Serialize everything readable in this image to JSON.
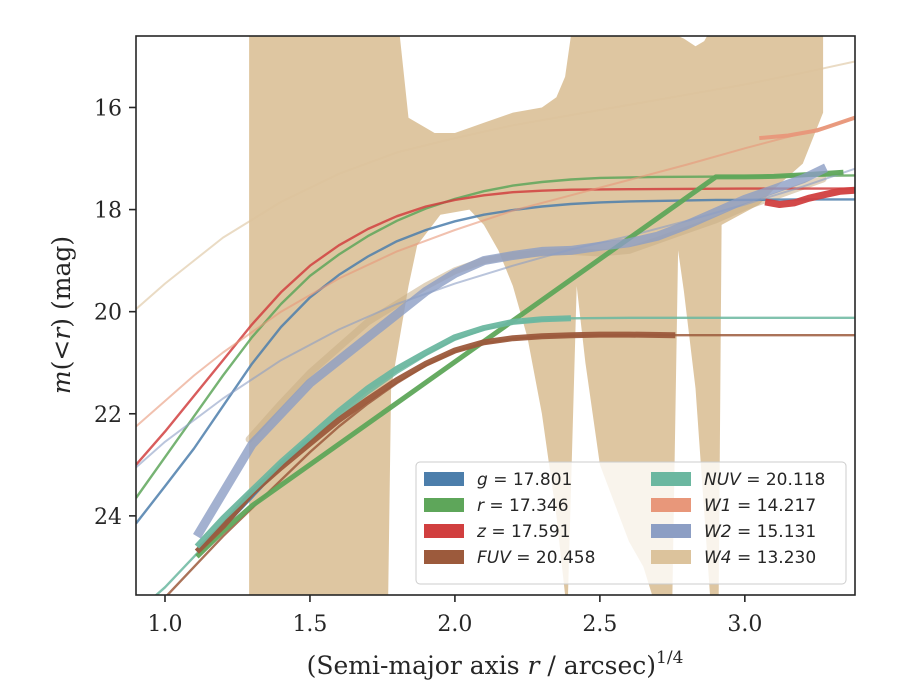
{
  "chart_data": {
    "type": "line",
    "title": "",
    "xlabel": "(Semi-major axis r / arcsec)",
    "xlabel_parts": {
      "pre": "(Semi-major axis ",
      "var": "r",
      "post": " / arcsec)",
      "sup": "1/4"
    },
    "ylabel": "m(< r) (mag)",
    "ylabel_parts": {
      "m": "m",
      "lp": "(",
      "lt": "<",
      "r": "r",
      "rp": ")",
      "unit": " (mag)"
    },
    "xlim": [
      0.9,
      3.38
    ],
    "ylim": [
      25.55,
      14.6
    ],
    "y_inverted": true,
    "xticks": [
      1.0,
      1.5,
      2.0,
      2.5,
      3.0
    ],
    "xtick_labels": [
      "1.0",
      "1.5",
      "2.0",
      "2.5",
      "3.0"
    ],
    "yticks": [
      16,
      18,
      20,
      22,
      24
    ],
    "ytick_labels": [
      "16",
      "18",
      "20",
      "22",
      "24"
    ],
    "legend_placement": "lower-right",
    "series": [
      {
        "name": "g",
        "label_var": "g",
        "label_value": " = 17.801",
        "color": "#4c7eab",
        "fit": [
          [
            0.9,
            24.15
          ],
          [
            1.0,
            23.42
          ],
          [
            1.1,
            22.68
          ],
          [
            1.2,
            21.85
          ],
          [
            1.3,
            21.02
          ],
          [
            1.4,
            20.3
          ],
          [
            1.5,
            19.72
          ],
          [
            1.6,
            19.28
          ],
          [
            1.7,
            18.92
          ],
          [
            1.8,
            18.62
          ],
          [
            1.9,
            18.4
          ],
          [
            2.0,
            18.23
          ],
          [
            2.1,
            18.1
          ],
          [
            2.2,
            18.01
          ],
          [
            2.3,
            17.94
          ],
          [
            2.4,
            17.89
          ],
          [
            2.5,
            17.86
          ],
          [
            2.6,
            17.84
          ],
          [
            2.7,
            17.83
          ],
          [
            2.8,
            17.82
          ],
          [
            2.9,
            17.81
          ],
          [
            3.0,
            17.81
          ],
          [
            3.2,
            17.8
          ],
          [
            3.38,
            17.8
          ]
        ],
        "data": [
          [
            1.11,
            24.7
          ],
          [
            1.2,
            24.2
          ],
          [
            1.3,
            23.6
          ],
          [
            1.4,
            23.0
          ],
          [
            1.5,
            22.5
          ]
        ]
      },
      {
        "name": "r",
        "label_var": "r",
        "label_value": " = 17.346",
        "color": "#5ea65a",
        "fit": [
          [
            0.9,
            23.65
          ],
          [
            1.0,
            22.85
          ],
          [
            1.1,
            22.05
          ],
          [
            1.2,
            21.25
          ],
          [
            1.3,
            20.5
          ],
          [
            1.4,
            19.85
          ],
          [
            1.5,
            19.3
          ],
          [
            1.6,
            18.88
          ],
          [
            1.7,
            18.52
          ],
          [
            1.8,
            18.22
          ],
          [
            1.9,
            17.98
          ],
          [
            2.0,
            17.79
          ],
          [
            2.1,
            17.64
          ],
          [
            2.2,
            17.53
          ],
          [
            2.3,
            17.46
          ],
          [
            2.4,
            17.41
          ],
          [
            2.5,
            17.38
          ],
          [
            2.7,
            17.36
          ],
          [
            3.0,
            17.35
          ],
          [
            3.38,
            17.33
          ]
        ],
        "data": [
          [
            1.11,
            24.8
          ],
          [
            1.2,
            24.3
          ],
          [
            1.3,
            23.8
          ],
          [
            2.9,
            17.36
          ],
          [
            3.0,
            17.36
          ],
          [
            3.1,
            17.35
          ],
          [
            3.2,
            17.32
          ],
          [
            3.34,
            17.27
          ]
        ]
      },
      {
        "name": "z",
        "label_var": "z",
        "label_value": " = 17.591",
        "color": "#d13f3f",
        "fit": [
          [
            0.9,
            23.0
          ],
          [
            1.0,
            22.35
          ],
          [
            1.1,
            21.65
          ],
          [
            1.2,
            20.95
          ],
          [
            1.3,
            20.25
          ],
          [
            1.4,
            19.62
          ],
          [
            1.5,
            19.1
          ],
          [
            1.6,
            18.7
          ],
          [
            1.7,
            18.38
          ],
          [
            1.8,
            18.13
          ],
          [
            1.9,
            17.94
          ],
          [
            2.0,
            17.81
          ],
          [
            2.1,
            17.72
          ],
          [
            2.2,
            17.66
          ],
          [
            2.3,
            17.63
          ],
          [
            2.4,
            17.61
          ],
          [
            2.6,
            17.6
          ],
          [
            3.0,
            17.59
          ],
          [
            3.38,
            17.59
          ]
        ],
        "data": [
          [
            3.07,
            17.85
          ],
          [
            3.12,
            17.9
          ],
          [
            3.17,
            17.87
          ],
          [
            3.22,
            17.78
          ],
          [
            3.28,
            17.7
          ],
          [
            3.33,
            17.64
          ],
          [
            3.38,
            17.62
          ]
        ]
      },
      {
        "name": "FUV",
        "label_var": "FUV",
        "label_value": " = 20.458",
        "color": "#9c5a3c",
        "fit": [
          [
            0.9,
            26.2
          ],
          [
            1.0,
            25.6
          ],
          [
            1.1,
            25.0
          ],
          [
            1.2,
            24.4
          ],
          [
            1.3,
            23.85
          ],
          [
            1.4,
            23.3
          ],
          [
            1.5,
            22.75
          ],
          [
            1.6,
            22.25
          ],
          [
            1.7,
            21.8
          ],
          [
            1.8,
            21.4
          ],
          [
            1.9,
            21.05
          ],
          [
            2.0,
            20.78
          ],
          [
            2.1,
            20.62
          ],
          [
            2.2,
            20.53
          ],
          [
            2.3,
            20.49
          ],
          [
            2.4,
            20.47
          ],
          [
            2.6,
            20.46
          ],
          [
            3.0,
            20.46
          ],
          [
            3.38,
            20.46
          ]
        ],
        "data": [
          [
            1.11,
            24.7
          ],
          [
            1.2,
            24.2
          ],
          [
            1.3,
            23.55
          ],
          [
            1.4,
            23.05
          ],
          [
            1.5,
            22.58
          ],
          [
            1.6,
            22.12
          ],
          [
            1.7,
            21.72
          ],
          [
            1.8,
            21.34
          ],
          [
            1.9,
            21.02
          ],
          [
            2.0,
            20.76
          ],
          [
            2.1,
            20.6
          ],
          [
            2.2,
            20.52
          ],
          [
            2.3,
            20.48
          ],
          [
            2.4,
            20.46
          ],
          [
            2.5,
            20.45
          ],
          [
            2.6,
            20.45
          ],
          [
            2.76,
            20.46
          ]
        ]
      },
      {
        "name": "NUV",
        "label_var": "NUV",
        "label_value": " = 20.118",
        "color": "#6bb7a0",
        "fit": [
          [
            0.9,
            25.9
          ],
          [
            1.0,
            25.4
          ],
          [
            1.1,
            24.8
          ],
          [
            1.2,
            24.2
          ],
          [
            1.3,
            23.6
          ],
          [
            1.4,
            23.05
          ],
          [
            1.5,
            22.55
          ],
          [
            1.6,
            22.05
          ],
          [
            1.7,
            21.6
          ],
          [
            1.8,
            21.2
          ],
          [
            1.9,
            20.85
          ],
          [
            2.0,
            20.55
          ],
          [
            2.1,
            20.35
          ],
          [
            2.2,
            20.22
          ],
          [
            2.3,
            20.16
          ],
          [
            2.4,
            20.13
          ],
          [
            2.6,
            20.12
          ],
          [
            3.0,
            20.12
          ],
          [
            3.38,
            20.12
          ]
        ],
        "data": [
          [
            1.11,
            24.6
          ],
          [
            1.2,
            24.05
          ],
          [
            1.3,
            23.5
          ],
          [
            1.4,
            22.95
          ],
          [
            1.5,
            22.45
          ],
          [
            1.6,
            21.95
          ],
          [
            1.7,
            21.5
          ],
          [
            1.8,
            21.12
          ],
          [
            1.9,
            20.8
          ],
          [
            2.0,
            20.5
          ],
          [
            2.1,
            20.32
          ],
          [
            2.2,
            20.2
          ],
          [
            2.3,
            20.15
          ],
          [
            2.4,
            20.13
          ]
        ]
      },
      {
        "name": "W1",
        "label_var": "W1",
        "label_value": " = 14.217",
        "color": "#e8977a",
        "fit": [
          [
            0.9,
            22.25
          ],
          [
            1.0,
            21.75
          ],
          [
            1.1,
            21.25
          ],
          [
            1.2,
            20.8
          ],
          [
            1.4,
            20.0
          ],
          [
            1.6,
            19.35
          ],
          [
            1.8,
            18.82
          ],
          [
            2.0,
            18.4
          ],
          [
            2.2,
            18.02
          ],
          [
            2.4,
            17.72
          ],
          [
            2.6,
            17.42
          ],
          [
            2.8,
            17.12
          ],
          [
            3.0,
            16.8
          ],
          [
            3.2,
            16.5
          ],
          [
            3.38,
            16.22
          ]
        ],
        "data": [
          [
            3.05,
            16.6
          ],
          [
            3.15,
            16.55
          ],
          [
            3.25,
            16.45
          ],
          [
            3.38,
            16.2
          ]
        ]
      },
      {
        "name": "W2",
        "label_var": "W2",
        "label_value": " = 15.131",
        "color": "#8c9ec4",
        "fit": [
          [
            0.9,
            23.05
          ],
          [
            1.0,
            22.55
          ],
          [
            1.2,
            21.7
          ],
          [
            1.4,
            20.95
          ],
          [
            1.6,
            20.35
          ],
          [
            1.8,
            19.85
          ],
          [
            2.0,
            19.45
          ],
          [
            2.2,
            19.1
          ],
          [
            2.4,
            18.78
          ],
          [
            2.6,
            18.52
          ],
          [
            2.8,
            18.22
          ],
          [
            3.0,
            17.9
          ],
          [
            3.2,
            17.55
          ],
          [
            3.38,
            17.2
          ]
        ],
        "data": [
          [
            1.11,
            24.4
          ],
          [
            1.3,
            22.6
          ],
          [
            1.5,
            21.4
          ],
          [
            1.7,
            20.5
          ],
          [
            1.9,
            19.6
          ],
          [
            2.0,
            19.25
          ],
          [
            2.1,
            19.0
          ],
          [
            2.2,
            18.9
          ],
          [
            2.3,
            18.82
          ],
          [
            2.4,
            18.8
          ],
          [
            2.5,
            18.72
          ],
          [
            2.6,
            18.65
          ],
          [
            2.7,
            18.52
          ],
          [
            2.8,
            18.3
          ],
          [
            2.9,
            18.05
          ],
          [
            3.0,
            17.8
          ],
          [
            3.1,
            17.6
          ],
          [
            3.2,
            17.4
          ],
          [
            3.28,
            17.18
          ]
        ]
      },
      {
        "name": "W4",
        "label_var": "W4",
        "label_value": " = 13.230",
        "color": "#dcc39c",
        "fit": [
          [
            0.9,
            19.95
          ],
          [
            1.0,
            19.45
          ],
          [
            1.2,
            18.55
          ],
          [
            1.4,
            17.85
          ],
          [
            1.6,
            17.3
          ],
          [
            1.8,
            16.88
          ],
          [
            2.0,
            16.6
          ],
          [
            2.2,
            16.35
          ],
          [
            2.4,
            16.15
          ],
          [
            2.6,
            15.95
          ],
          [
            2.8,
            15.75
          ],
          [
            3.0,
            15.55
          ],
          [
            3.2,
            15.32
          ],
          [
            3.38,
            15.1
          ]
        ],
        "band_upper": [
          [
            1.29,
            14.6
          ],
          [
            1.78,
            14.6
          ],
          [
            1.78,
            14.6
          ],
          [
            1.81,
            14.6
          ],
          [
            1.84,
            16.2
          ],
          [
            1.93,
            16.5
          ],
          [
            2.0,
            16.5
          ],
          [
            2.1,
            16.3
          ],
          [
            2.2,
            16.1
          ],
          [
            2.3,
            16.0
          ],
          [
            2.35,
            15.8
          ],
          [
            2.38,
            15.4
          ],
          [
            2.4,
            14.6
          ],
          [
            2.77,
            14.6
          ],
          [
            2.79,
            14.65
          ],
          [
            2.83,
            14.8
          ],
          [
            2.86,
            14.7
          ],
          [
            2.87,
            14.6
          ],
          [
            3.27,
            14.6
          ],
          [
            3.27,
            16.1
          ]
        ],
        "band_lower": [
          [
            3.27,
            16.1
          ],
          [
            3.2,
            17.1
          ],
          [
            3.1,
            17.6
          ],
          [
            3.05,
            17.9
          ],
          [
            2.92,
            18.3
          ],
          [
            2.91,
            25.55
          ],
          [
            2.88,
            25.55
          ],
          [
            2.83,
            21.5
          ],
          [
            2.79,
            19.6
          ],
          [
            2.77,
            18.8
          ],
          [
            2.75,
            25.55
          ],
          [
            2.68,
            25.55
          ],
          [
            2.65,
            25.0
          ],
          [
            2.6,
            24.5
          ],
          [
            2.5,
            23.0
          ],
          [
            2.45,
            21.0
          ],
          [
            2.42,
            19.5
          ],
          [
            2.39,
            25.55
          ],
          [
            2.38,
            25.55
          ],
          [
            2.35,
            24.0
          ],
          [
            2.3,
            22.0
          ],
          [
            2.25,
            20.5
          ],
          [
            2.2,
            19.5
          ],
          [
            2.15,
            18.8
          ],
          [
            2.1,
            18.3
          ],
          [
            2.05,
            18.0
          ],
          [
            1.95,
            18.1
          ],
          [
            1.87,
            18.7
          ],
          [
            1.84,
            19.5
          ],
          [
            1.81,
            20.5
          ],
          [
            1.78,
            21.5
          ],
          [
            1.77,
            25.55
          ],
          [
            1.29,
            25.55
          ]
        ],
        "data_line": [
          [
            1.29,
            22.5
          ],
          [
            1.4,
            21.8
          ],
          [
            1.5,
            21.2
          ],
          [
            1.6,
            20.7
          ],
          [
            1.7,
            20.2
          ],
          [
            1.8,
            19.85
          ],
          [
            1.9,
            19.5
          ],
          [
            2.0,
            19.2
          ],
          [
            2.1,
            19.0
          ],
          [
            2.2,
            18.9
          ],
          [
            2.3,
            18.85
          ],
          [
            2.4,
            18.82
          ],
          [
            2.5,
            18.85
          ],
          [
            2.6,
            18.8
          ],
          [
            2.7,
            18.6
          ],
          [
            2.8,
            18.4
          ],
          [
            2.9,
            18.2
          ],
          [
            3.0,
            17.95
          ],
          [
            3.1,
            17.75
          ],
          [
            3.27,
            17.4
          ]
        ]
      }
    ]
  }
}
